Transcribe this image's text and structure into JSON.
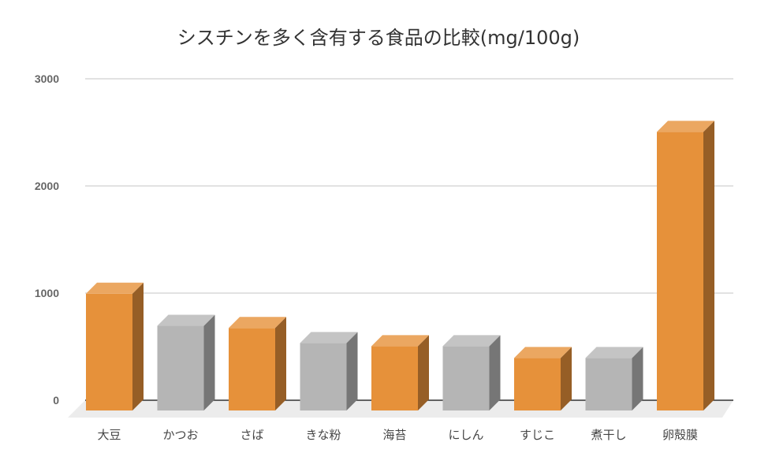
{
  "chart_data": {
    "type": "bar",
    "title": "シスチンを多く含有する食品の比較(mg/100g)",
    "xlabel": "",
    "ylabel": "",
    "ylim": [
      0,
      3000
    ],
    "yticks": [
      "0",
      "1000",
      "2000",
      "3000"
    ],
    "grid": true,
    "legend": "none",
    "categories": [
      "大豆",
      "かつお",
      "さば",
      "きな粉",
      "海苔",
      "にしん",
      "すじこ",
      "煮干し",
      "卵殻膜"
    ],
    "values": [
      1090,
      790,
      770,
      630,
      600,
      600,
      490,
      490,
      2600
    ],
    "colors": [
      "#e6913a",
      "#b5b5b5",
      "#e6913a",
      "#b5b5b5",
      "#e6913a",
      "#b5b5b5",
      "#e6913a",
      "#b5b5b5",
      "#e6913a"
    ]
  }
}
